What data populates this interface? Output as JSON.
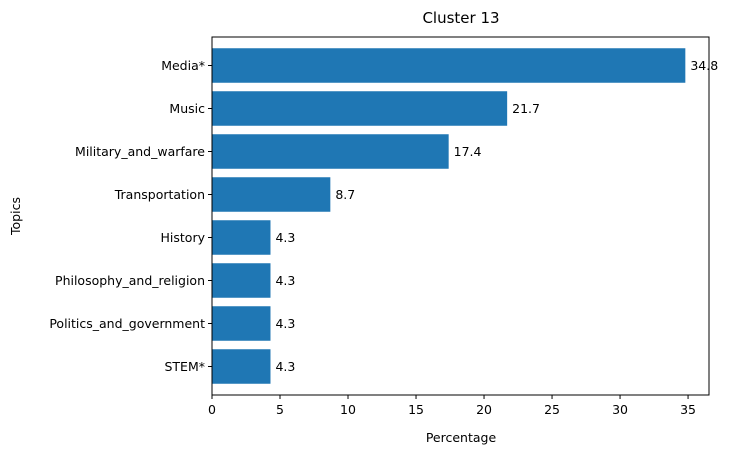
{
  "chart_data": {
    "type": "bar",
    "orientation": "horizontal",
    "title": "Cluster 13",
    "xlabel": "Percentage",
    "ylabel": "Topics",
    "categories": [
      "Media*",
      "Music",
      "Military_and_warfare",
      "Transportation",
      "History",
      "Philosophy_and_religion",
      "Politics_and_government",
      "STEM*"
    ],
    "values": [
      34.8,
      21.7,
      17.4,
      8.7,
      4.3,
      4.3,
      4.3,
      4.3
    ],
    "data_labels": [
      "34.8",
      "21.7",
      "17.4",
      "8.7",
      "4.3",
      "4.3",
      "4.3",
      "4.3"
    ],
    "xlim": [
      0,
      36.54
    ],
    "x_ticks": [
      0,
      5,
      10,
      15,
      20,
      25,
      30,
      35
    ],
    "grid": false,
    "legend": "none",
    "bar_color": "#1f77b4"
  }
}
